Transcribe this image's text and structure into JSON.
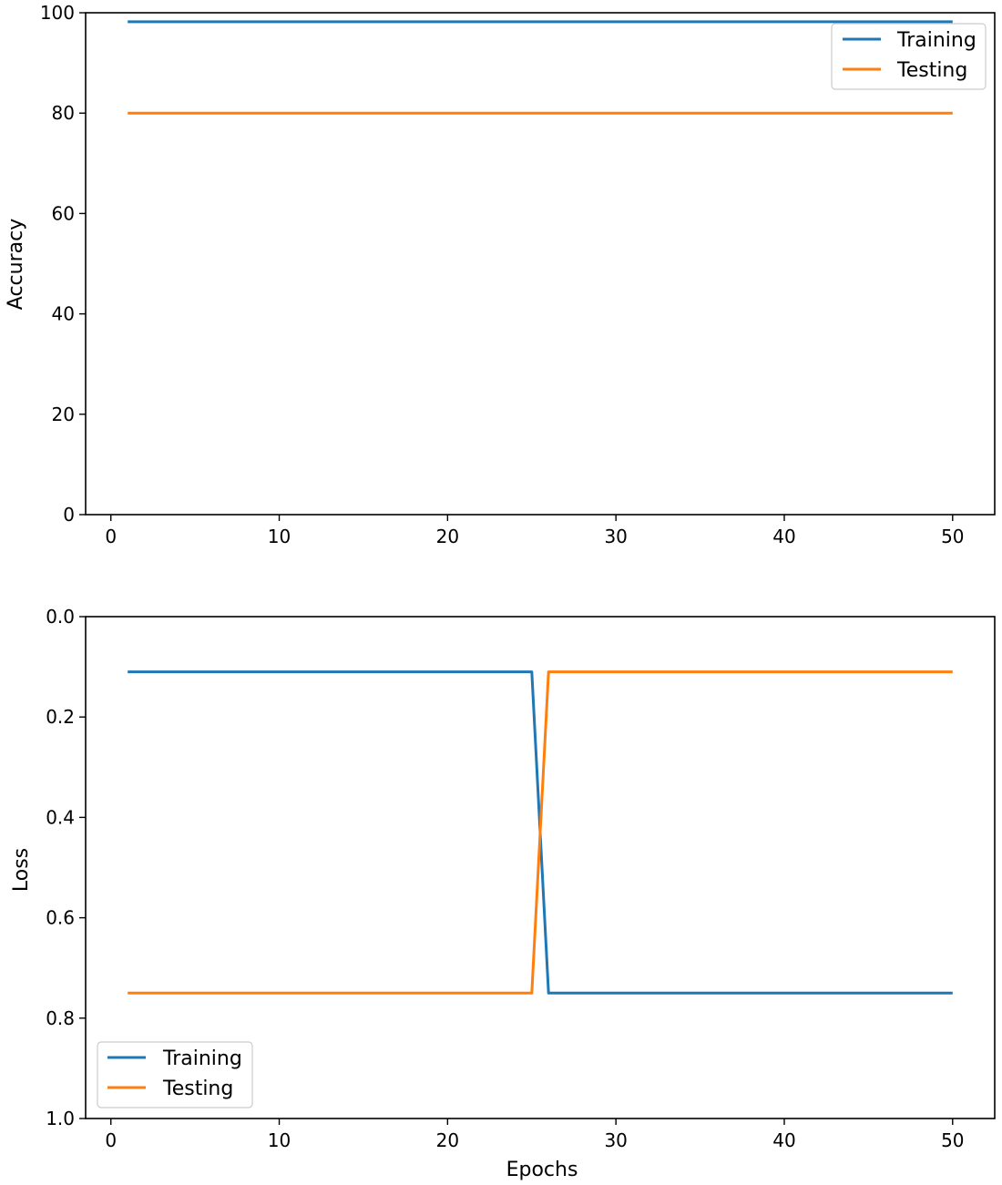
{
  "chart_data": [
    {
      "type": "line",
      "title": "",
      "xlabel": "",
      "ylabel": "Accuracy",
      "xlim": [
        -1.5,
        52.5
      ],
      "ylim": [
        0,
        100
      ],
      "y_inverted": false,
      "xticks": [
        0,
        10,
        20,
        30,
        40,
        50
      ],
      "xtick_labels": [
        "0",
        "10",
        "20",
        "30",
        "40",
        "50"
      ],
      "yticks": [
        0,
        20,
        40,
        60,
        80,
        100
      ],
      "ytick_labels": [
        "0",
        "20",
        "40",
        "60",
        "80",
        "100"
      ],
      "grid": false,
      "legend": "upper right",
      "series": [
        {
          "name": "Training",
          "color": "#1f77b4",
          "x": [
            1,
            50
          ],
          "y": [
            98.2,
            98.2
          ]
        },
        {
          "name": "Testing",
          "color": "#ff7f0e",
          "x": [
            1,
            50
          ],
          "y": [
            80,
            80
          ]
        }
      ]
    },
    {
      "type": "line",
      "title": "",
      "xlabel": "Epochs",
      "ylabel": "Loss",
      "xlim": [
        -1.5,
        52.5
      ],
      "ylim": [
        1.0,
        0.0
      ],
      "y_inverted": true,
      "xticks": [
        0,
        10,
        20,
        30,
        40,
        50
      ],
      "xtick_labels": [
        "0",
        "10",
        "20",
        "30",
        "40",
        "50"
      ],
      "yticks": [
        0.0,
        0.2,
        0.4,
        0.6,
        0.8,
        1.0
      ],
      "ytick_labels": [
        "0.0",
        "0.2",
        "0.4",
        "0.6",
        "0.8",
        "1.0"
      ],
      "grid": false,
      "legend": "lower left",
      "series": [
        {
          "name": "Training",
          "color": "#1f77b4",
          "x": [
            1,
            25,
            26,
            50
          ],
          "y": [
            0.11,
            0.11,
            0.75,
            0.75
          ]
        },
        {
          "name": "Testing",
          "color": "#ff7f0e",
          "x": [
            1,
            25,
            26,
            50
          ],
          "y": [
            0.75,
            0.75,
            0.11,
            0.11
          ]
        }
      ]
    }
  ]
}
